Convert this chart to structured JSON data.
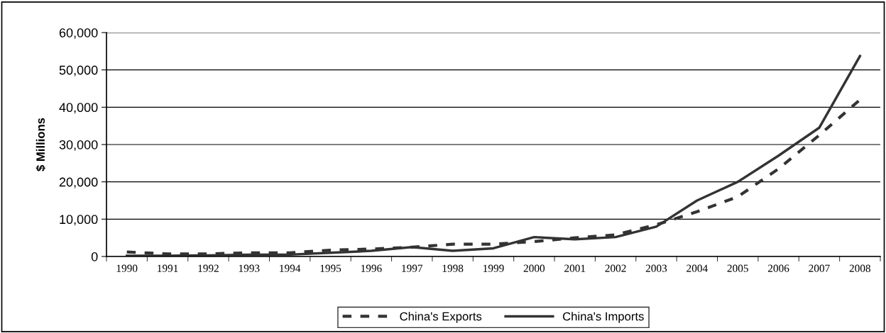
{
  "chart_data": {
    "type": "line",
    "ylabel": "$ Millions",
    "categories": [
      "1990",
      "1991",
      "1992",
      "1993",
      "1994",
      "1995",
      "1996",
      "1997",
      "1998",
      "1999",
      "2000",
      "2001",
      "2002",
      "2003",
      "2004",
      "2005",
      "2006",
      "2007",
      "2008"
    ],
    "series": [
      {
        "name": "China's Exports",
        "color": "#333333",
        "line_style": "dashed",
        "values": [
          1200,
          700,
          700,
          1000,
          1000,
          1700,
          2000,
          2500,
          3300,
          3300,
          4000,
          5000,
          5800,
          8500,
          12000,
          16000,
          23500,
          32500,
          42000
        ]
      },
      {
        "name": "China's Imports",
        "color": "#333333",
        "line_style": "solid",
        "values": [
          200,
          200,
          300,
          500,
          500,
          1000,
          1500,
          2500,
          1500,
          2200,
          5200,
          4600,
          5200,
          8000,
          15000,
          20000,
          27000,
          34500,
          53700
        ]
      }
    ],
    "ylim": [
      0,
      60000
    ],
    "yticks": [
      {
        "value": 0,
        "label": "0"
      },
      {
        "value": 10000,
        "label": "10,000"
      },
      {
        "value": 20000,
        "label": "20,000"
      },
      {
        "value": 30000,
        "label": "30,000"
      },
      {
        "value": 40000,
        "label": "40,000"
      },
      {
        "value": 50000,
        "label": "50,000"
      },
      {
        "value": 60000,
        "label": "60,000"
      }
    ],
    "grid": "y",
    "legend": "bottom",
    "marker": "none"
  }
}
